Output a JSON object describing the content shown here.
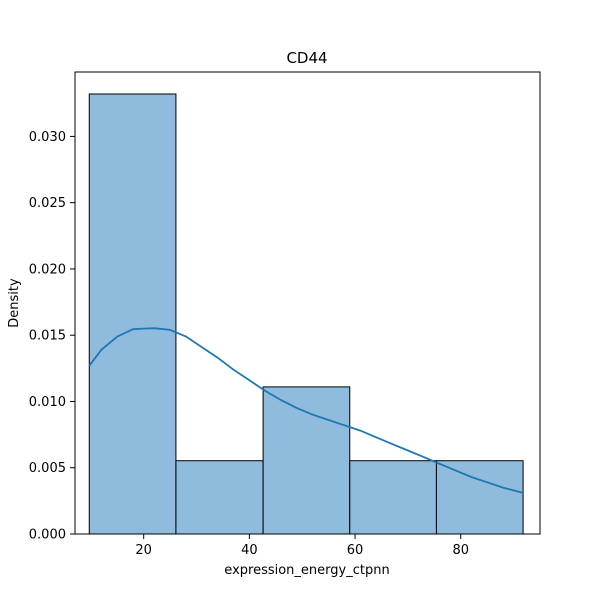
{
  "chart_data": {
    "type": "bar",
    "title": "CD44",
    "xlabel": "expression_energy_ctpnn",
    "ylabel": "Density",
    "bins": [
      {
        "x0": 9.7,
        "x1": 26.1,
        "density": 0.0332
      },
      {
        "x0": 26.1,
        "x1": 42.6,
        "density": 0.00553
      },
      {
        "x0": 42.6,
        "x1": 59.0,
        "density": 0.0111
      },
      {
        "x0": 59.0,
        "x1": 75.4,
        "density": 0.00553
      },
      {
        "x0": 75.4,
        "x1": 91.8,
        "density": 0.00553
      }
    ],
    "kde": {
      "x": [
        9.7,
        12,
        15,
        18,
        20,
        22,
        25,
        28,
        31,
        34,
        37,
        40,
        43,
        46,
        49,
        52,
        55,
        58,
        61,
        64,
        67,
        70,
        73,
        76,
        79,
        82,
        85,
        88,
        91.8
      ],
      "y": [
        0.0127,
        0.0139,
        0.0149,
        0.01545,
        0.0155,
        0.01553,
        0.0154,
        0.0149,
        0.0141,
        0.0133,
        0.0124,
        0.0116,
        0.0108,
        0.0101,
        0.0095,
        0.009,
        0.0086,
        0.0082,
        0.0078,
        0.0073,
        0.0068,
        0.0063,
        0.0058,
        0.0053,
        0.0048,
        0.0043,
        0.0039,
        0.0035,
        0.0031
      ]
    },
    "xlim": [
      7.0,
      95.0
    ],
    "ylim": [
      0.0,
      0.0332
    ],
    "xticks": [
      20,
      40,
      60,
      80
    ],
    "xtick_labels": [
      "20",
      "40",
      "60",
      "80"
    ],
    "yticks": [
      0.0,
      0.005,
      0.01,
      0.015,
      0.02,
      0.025,
      0.03
    ],
    "ytick_labels": [
      "0.000",
      "0.005",
      "0.010",
      "0.015",
      "0.020",
      "0.025",
      "0.030"
    ],
    "grid": false,
    "colors": {
      "bar_fill": "#8fbbdc",
      "bar_edge": "#000000",
      "kde_line": "#1f77b4"
    }
  }
}
